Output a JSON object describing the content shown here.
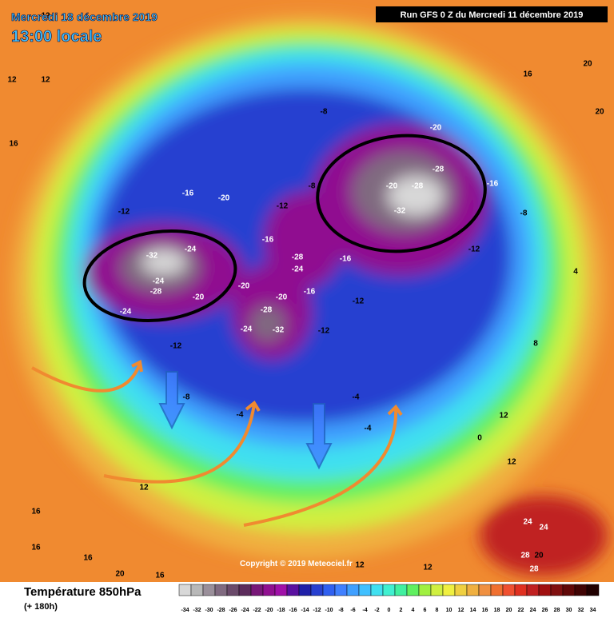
{
  "header": {
    "date": "Mercredi 18 décembre 2019",
    "time": "13:00 locale",
    "run": "Run GFS 0 Z du Mercredi 11 décembre 2019"
  },
  "copyright": "Copyright © 2019 Meteociel.fr",
  "legend": {
    "title": "Température 850hPa",
    "subtitle": "(+ 180h)",
    "ticks": [
      -34,
      -32,
      -30,
      -28,
      -26,
      -24,
      -22,
      -20,
      -18,
      -16,
      -14,
      -12,
      -10,
      -8,
      -6,
      -4,
      -2,
      0,
      2,
      4,
      6,
      8,
      10,
      12,
      14,
      16,
      18,
      20,
      22,
      24,
      26,
      28,
      30,
      32,
      34
    ],
    "colors": [
      "#d8d8d8",
      "#b8b8b8",
      "#9a8f9a",
      "#806a80",
      "#6a4a6a",
      "#5c2c5c",
      "#781878",
      "#901090",
      "#a010a8",
      "#5a10a0",
      "#2020a8",
      "#2840d0",
      "#3060f0",
      "#4080ff",
      "#40a0ff",
      "#40c0ff",
      "#40e0f0",
      "#40f0d0",
      "#40f0a0",
      "#60f060",
      "#a0f040",
      "#d0f040",
      "#f0f040",
      "#f0d040",
      "#f0b040",
      "#f09040",
      "#f07030",
      "#f05030",
      "#e03020",
      "#c02020",
      "#a01010",
      "#801010",
      "#600808",
      "#400404",
      "#200000"
    ]
  },
  "map_labels": [
    -32,
    -24,
    -24,
    -28,
    -20,
    -24,
    -20,
    -28,
    -32,
    -24,
    -20,
    -28,
    -24,
    -16,
    -16,
    -16,
    -12,
    -12,
    -12,
    -8,
    -4,
    -32,
    -28,
    -20,
    -28,
    -20,
    -16,
    -12,
    -8,
    -8,
    -12,
    -20,
    -16,
    -12,
    -8,
    -4,
    -4,
    0,
    12,
    24,
    24,
    28,
    20,
    28,
    20,
    20,
    20,
    16,
    12,
    12,
    12,
    16,
    16,
    16,
    20,
    16,
    12,
    12,
    12,
    16,
    8,
    4,
    12
  ]
}
